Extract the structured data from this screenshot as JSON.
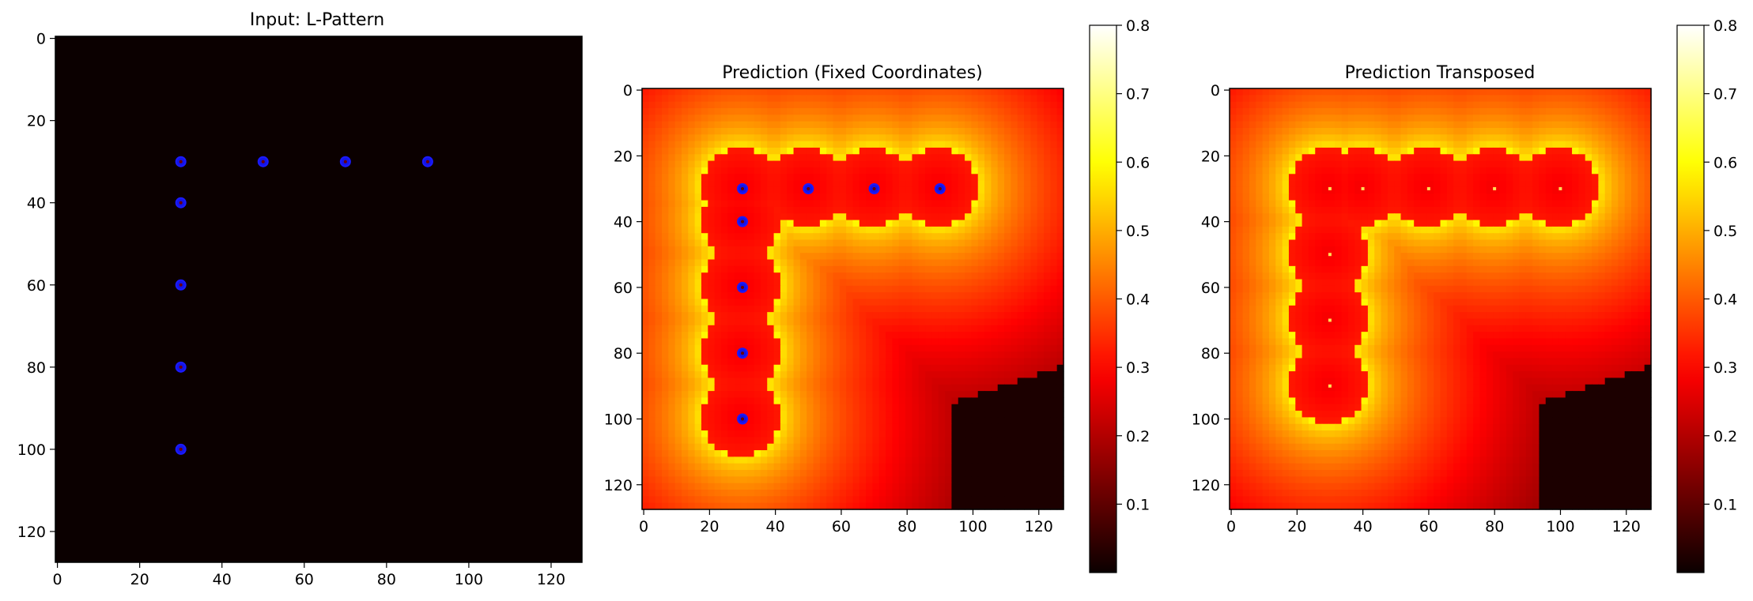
{
  "chart_data": [
    {
      "type": "heatmap",
      "title": "Input: L-Pattern",
      "xlim": [
        0,
        128
      ],
      "ylim": [
        128,
        0
      ],
      "xticks": [
        0,
        20,
        40,
        60,
        80,
        100,
        120
      ],
      "yticks": [
        0,
        20,
        40,
        60,
        80,
        100,
        120
      ],
      "background_color": "#0b0000",
      "marker_color": "#1414e6",
      "points": [
        {
          "x": 30,
          "y": 30
        },
        {
          "x": 50,
          "y": 30
        },
        {
          "x": 70,
          "y": 30
        },
        {
          "x": 90,
          "y": 30
        },
        {
          "x": 30,
          "y": 40
        },
        {
          "x": 30,
          "y": 60
        },
        {
          "x": 30,
          "y": 80
        },
        {
          "x": 30,
          "y": 100
        }
      ],
      "colorbar": null
    },
    {
      "type": "heatmap",
      "title": "Prediction (Fixed Coordinates)",
      "xlim": [
        0,
        128
      ],
      "ylim": [
        128,
        0
      ],
      "xticks": [
        0,
        20,
        40,
        60,
        80,
        100,
        120
      ],
      "yticks": [
        0,
        20,
        40,
        60,
        80,
        100,
        120
      ],
      "colormap": "hot",
      "centers": [
        {
          "x": 30,
          "y": 30
        },
        {
          "x": 50,
          "y": 30
        },
        {
          "x": 70,
          "y": 30
        },
        {
          "x": 90,
          "y": 30
        },
        {
          "x": 30,
          "y": 40
        },
        {
          "x": 30,
          "y": 60
        },
        {
          "x": 30,
          "y": 80
        },
        {
          "x": 30,
          "y": 100
        }
      ],
      "inner_radius": 12,
      "inner_value": 0.28,
      "ring_value": 0.6,
      "outer_fade": 0.25,
      "dark_region_value": 0.02,
      "marker_color": "#1414e6",
      "markers_shown": true,
      "colorbar": {
        "min": 0.0,
        "max": 0.8,
        "ticks": [
          0.1,
          0.2,
          0.3,
          0.4,
          0.5,
          0.6,
          0.7,
          0.8
        ]
      }
    },
    {
      "type": "heatmap",
      "title": "Prediction Transposed",
      "xlim": [
        0,
        128
      ],
      "ylim": [
        128,
        0
      ],
      "xticks": [
        0,
        20,
        40,
        60,
        80,
        100,
        120
      ],
      "yticks": [
        0,
        20,
        40,
        60,
        80,
        100,
        120
      ],
      "colormap": "hot",
      "centers": [
        {
          "x": 30,
          "y": 30
        },
        {
          "x": 40,
          "y": 30
        },
        {
          "x": 60,
          "y": 30
        },
        {
          "x": 80,
          "y": 30
        },
        {
          "x": 100,
          "y": 30
        },
        {
          "x": 30,
          "y": 50
        },
        {
          "x": 30,
          "y": 70
        },
        {
          "x": 30,
          "y": 90
        }
      ],
      "inner_radius": 12,
      "inner_value": 0.28,
      "ring_value": 0.6,
      "outer_fade": 0.25,
      "dark_region_value": 0.02,
      "markers_shown": false,
      "colorbar": {
        "min": 0.0,
        "max": 0.8,
        "ticks": [
          0.1,
          0.2,
          0.3,
          0.4,
          0.5,
          0.6,
          0.7,
          0.8
        ]
      }
    }
  ]
}
